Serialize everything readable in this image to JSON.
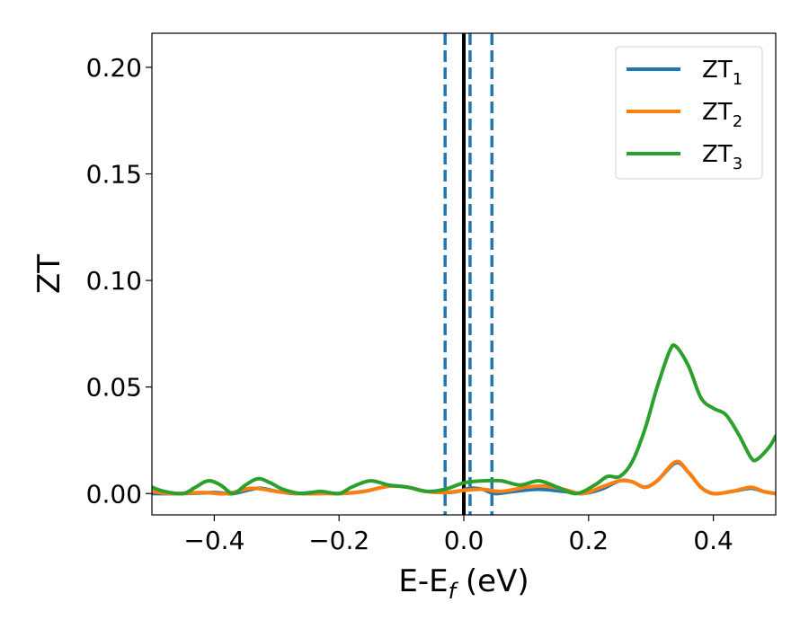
{
  "chart_data": {
    "type": "line",
    "xlabel": "E-E",
    "xlabel_sub": "f",
    "xlabel_unit": " (eV)",
    "ylabel": "ZT",
    "xlim": [
      -0.5,
      0.5
    ],
    "ylim": [
      -0.01,
      0.216
    ],
    "x_ticks": [
      -0.4,
      -0.2,
      0.0,
      0.2,
      0.4
    ],
    "x_tick_labels": [
      "−0.4",
      "−0.2",
      "0.0",
      "0.2",
      "0.4"
    ],
    "y_ticks": [
      0.0,
      0.05,
      0.1,
      0.15,
      0.2
    ],
    "y_tick_labels": [
      "0.00",
      "0.05",
      "0.10",
      "0.15",
      "0.20"
    ],
    "grid": false,
    "legend_position": "top-right",
    "colors": {
      "ZT1": "#1f77b4",
      "ZT2": "#ff7f0e",
      "ZT3": "#2ca02c",
      "fermi": "#000000"
    },
    "vertical_lines": [
      {
        "x": 0.0,
        "style": "solid",
        "color": "#000000"
      },
      {
        "x": -0.03,
        "style": "dashed",
        "color": "#1f77b4"
      },
      {
        "x": 0.01,
        "style": "dashed",
        "color": "#1f77b4"
      },
      {
        "x": 0.045,
        "style": "dashed",
        "color": "#1f77b4"
      }
    ],
    "series": [
      {
        "name": "ZT1",
        "label_main": "ZT",
        "label_sub": "1",
        "color": "#1f77b4",
        "points": [
          [
            -0.5,
            0.0
          ],
          [
            -0.45,
            0.0
          ],
          [
            -0.4,
            0.0005
          ],
          [
            -0.37,
            0.0
          ],
          [
            -0.33,
            0.0025
          ],
          [
            -0.3,
            0.001
          ],
          [
            -0.27,
            0.0
          ],
          [
            -0.24,
            0.0005
          ],
          [
            -0.2,
            0.0
          ],
          [
            -0.16,
            0.001
          ],
          [
            -0.12,
            0.0035
          ],
          [
            -0.09,
            0.003
          ],
          [
            -0.06,
            0.001
          ],
          [
            -0.03,
            0.0005
          ],
          [
            -0.01,
            0.001
          ],
          [
            0.01,
            0.0025
          ],
          [
            0.03,
            0.002
          ],
          [
            0.05,
            0.0
          ],
          [
            0.08,
            0.001
          ],
          [
            0.12,
            0.002
          ],
          [
            0.16,
            0.001
          ],
          [
            0.19,
            0.0
          ],
          [
            0.22,
            0.002
          ],
          [
            0.25,
            0.006
          ],
          [
            0.27,
            0.0055
          ],
          [
            0.29,
            0.003
          ],
          [
            0.31,
            0.006
          ],
          [
            0.34,
            0.0145
          ],
          [
            0.36,
            0.01
          ],
          [
            0.38,
            0.003
          ],
          [
            0.4,
            0.0
          ],
          [
            0.43,
            0.001
          ],
          [
            0.46,
            0.0025
          ],
          [
            0.48,
            0.001
          ],
          [
            0.5,
            0.0
          ]
        ]
      },
      {
        "name": "ZT2",
        "label_main": "ZT",
        "label_sub": "2",
        "color": "#ff7f0e",
        "points": [
          [
            -0.5,
            0.001
          ],
          [
            -0.47,
            0.0
          ],
          [
            -0.42,
            0.0005
          ],
          [
            -0.38,
            0.0
          ],
          [
            -0.34,
            0.0025
          ],
          [
            -0.3,
            0.001
          ],
          [
            -0.26,
            0.0
          ],
          [
            -0.22,
            0.0
          ],
          [
            -0.2,
            0.0
          ],
          [
            -0.16,
            0.001
          ],
          [
            -0.12,
            0.0035
          ],
          [
            -0.09,
            0.003
          ],
          [
            -0.06,
            0.001
          ],
          [
            -0.03,
            0.0005
          ],
          [
            0.0,
            0.0015
          ],
          [
            0.03,
            0.002
          ],
          [
            0.06,
            0.001
          ],
          [
            0.1,
            0.003
          ],
          [
            0.13,
            0.0035
          ],
          [
            0.16,
            0.002
          ],
          [
            0.19,
            0.0
          ],
          [
            0.22,
            0.003
          ],
          [
            0.25,
            0.006
          ],
          [
            0.27,
            0.0055
          ],
          [
            0.29,
            0.003
          ],
          [
            0.31,
            0.006
          ],
          [
            0.34,
            0.015
          ],
          [
            0.36,
            0.01
          ],
          [
            0.38,
            0.003
          ],
          [
            0.4,
            0.0
          ],
          [
            0.43,
            0.001
          ],
          [
            0.46,
            0.003
          ],
          [
            0.48,
            0.001
          ],
          [
            0.5,
            0.0
          ]
        ]
      },
      {
        "name": "ZT3",
        "label_main": "ZT",
        "label_sub": "3",
        "color": "#2ca02c",
        "points": [
          [
            -0.5,
            0.003
          ],
          [
            -0.48,
            0.001
          ],
          [
            -0.45,
            0.0
          ],
          [
            -0.43,
            0.003
          ],
          [
            -0.41,
            0.006
          ],
          [
            -0.39,
            0.004
          ],
          [
            -0.37,
            0.0
          ],
          [
            -0.35,
            0.004
          ],
          [
            -0.33,
            0.007
          ],
          [
            -0.31,
            0.005
          ],
          [
            -0.29,
            0.002
          ],
          [
            -0.26,
            0.0
          ],
          [
            -0.23,
            0.001
          ],
          [
            -0.2,
            0.0
          ],
          [
            -0.18,
            0.003
          ],
          [
            -0.15,
            0.006
          ],
          [
            -0.12,
            0.004
          ],
          [
            -0.09,
            0.003
          ],
          [
            -0.06,
            0.001
          ],
          [
            -0.03,
            0.002
          ],
          [
            0.0,
            0.005
          ],
          [
            0.03,
            0.006
          ],
          [
            0.06,
            0.006
          ],
          [
            0.09,
            0.004
          ],
          [
            0.12,
            0.006
          ],
          [
            0.15,
            0.003
          ],
          [
            0.18,
            0.0
          ],
          [
            0.21,
            0.004
          ],
          [
            0.23,
            0.008
          ],
          [
            0.25,
            0.008
          ],
          [
            0.27,
            0.015
          ],
          [
            0.29,
            0.03
          ],
          [
            0.31,
            0.05
          ],
          [
            0.33,
            0.067
          ],
          [
            0.34,
            0.069
          ],
          [
            0.36,
            0.06
          ],
          [
            0.38,
            0.045
          ],
          [
            0.4,
            0.04
          ],
          [
            0.42,
            0.037
          ],
          [
            0.44,
            0.028
          ],
          [
            0.46,
            0.017
          ],
          [
            0.47,
            0.016
          ],
          [
            0.49,
            0.022
          ],
          [
            0.5,
            0.027
          ]
        ]
      }
    ]
  }
}
